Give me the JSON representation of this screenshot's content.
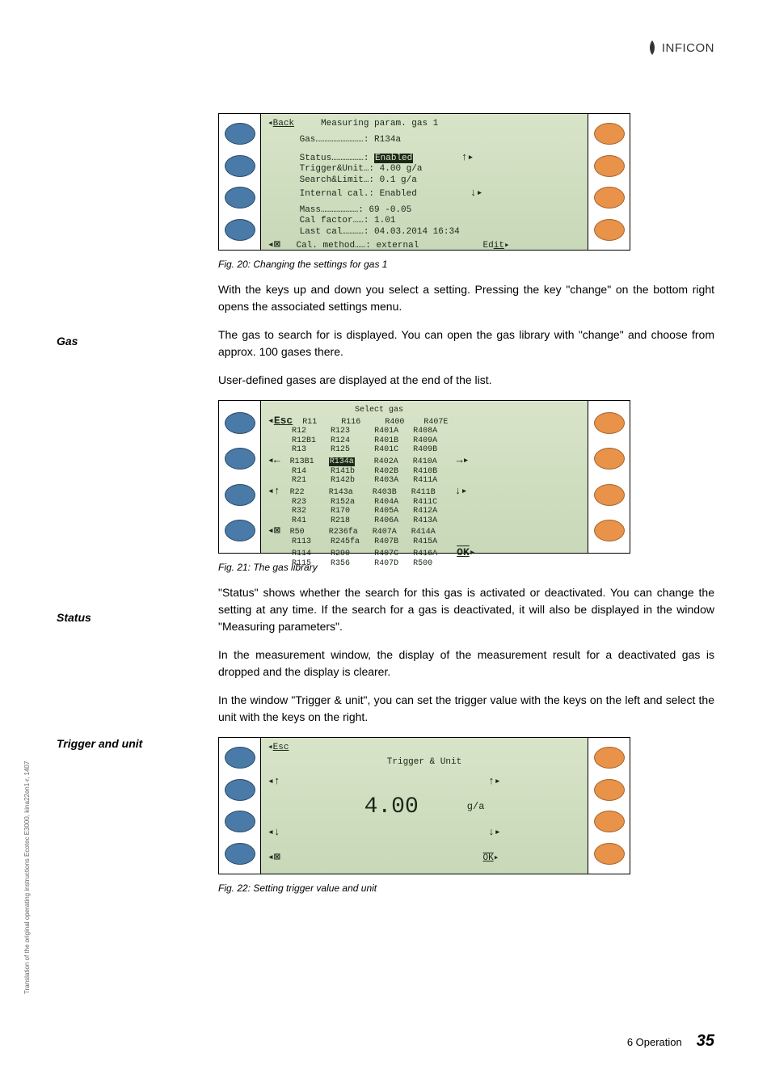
{
  "logo_text": "INFICON",
  "figures": {
    "fig20": {
      "caption": "Fig. 20: Changing the settings for gas 1",
      "title_left": "Back",
      "title_center": "Measuring param. gas 1",
      "lines": {
        "gas_label": "Gas………………………:",
        "gas_value": "R134a",
        "status_label": "Status………………:",
        "status_value": "Enabled",
        "trigger_label": "Trigger&Unit…:",
        "trigger_value": "4.00 g/a",
        "search_label": "Search&Limit…:",
        "search_value": "0.1 g/a",
        "intcal_label": "Internal cal.:",
        "intcal_value": "Enabled",
        "mass_label": "Mass…………………:",
        "mass_value": " 69 -0.05",
        "calf_label": "Cal factor……:",
        "calf_value": "1.01",
        "lastcal_label": "Last cal…………:",
        "lastcal_value": "04.03.2014 16:34",
        "calm_label": "Cal. method……:",
        "calm_value": "external"
      },
      "corners": {
        "tl": "◂",
        "bl": "◂⊠",
        "tr": "↑▸",
        "mr": "↓▸",
        "br": "Edit▸"
      }
    },
    "fig21": {
      "caption": "Fig. 21: The gas library",
      "title": "Select gas",
      "selected": "R134a",
      "cols": [
        [
          "R11",
          "R12",
          "R12B1",
          "R13",
          "R13B1",
          "R14",
          "R21",
          "R22",
          "R23",
          "R32",
          "R41",
          "R50",
          "R113",
          "R114",
          "R115"
        ],
        [
          "R116",
          "R123",
          "R124",
          "R125",
          "R134a",
          "R141b",
          "R142b",
          "R143a",
          "R152a",
          "R170",
          "R218",
          "R236fa",
          "R245fa",
          "R290",
          "R356"
        ],
        [
          "R400",
          "R401A",
          "R401B",
          "R401C",
          "R402A",
          "R402B",
          "R403A",
          "R403B",
          "R404A",
          "R405A",
          "R406A",
          "R407A",
          "R407B",
          "R407C",
          "R407D"
        ],
        [
          "R407E",
          "R408A",
          "R409A",
          "R409B",
          "R410A",
          "R410B",
          "R411A",
          "R411B",
          "R411C",
          "R412A",
          "R413A",
          "R414A",
          "R415A",
          "R416A",
          "R500"
        ]
      ],
      "corners": {
        "tl": "Esc",
        "l2": "◂←",
        "l3": "◂↑",
        "bl": "◂⊠",
        "tr": "→▸",
        "mr": "↓▸",
        "br": "OK▸"
      }
    },
    "fig22": {
      "caption": "Fig. 22: Setting trigger value and unit",
      "title": "Trigger & Unit",
      "value": "4.00",
      "unit": "g/a",
      "corners": {
        "tl": "Esc",
        "l2": "◂↑",
        "l3": "◂↓",
        "bl": "◂⊠",
        "tr": "↑▸",
        "mr": "↓▸",
        "br": "OK▸"
      }
    }
  },
  "paragraphs": {
    "p1": "With the keys up and down you select a setting. Pressing the key \"change\" on the bottom right opens the associated settings menu.",
    "p2": "The gas to search for is displayed. You can open the gas library with \"change\" and choose from approx. 100 gases there.",
    "p3": "User-defined gases are displayed at the end of the list.",
    "p4": "\"Status\" shows whether the search for this gas is activated or deactivated. You can change the setting at any time. If the search for a gas is deactivated, it will also be displayed in the window \"Measuring parameters\".",
    "p5": "In the measurement window, the display of the measurement result for a deactivated gas is dropped and the display is clearer.",
    "p6": "In the window \"Trigger & unit\", you can set the trigger value with the keys on the left and select the unit with the keys on the right."
  },
  "side_labels": {
    "gas": "Gas",
    "status": "Status",
    "trigger": "Trigger and unit"
  },
  "vertical_note": "Translation of the original operating instructions Ecotec E3000, kina22en1-r, 1407",
  "footer": {
    "section": "6  Operation",
    "page": "35"
  },
  "colors": {
    "lcd_bg_top": "#d8e4c8",
    "lcd_bg_bottom": "#c8d8b8",
    "lcd_text": "#1a2818",
    "btn_blue": "#4a7aa8",
    "btn_orange": "#e8924a"
  }
}
